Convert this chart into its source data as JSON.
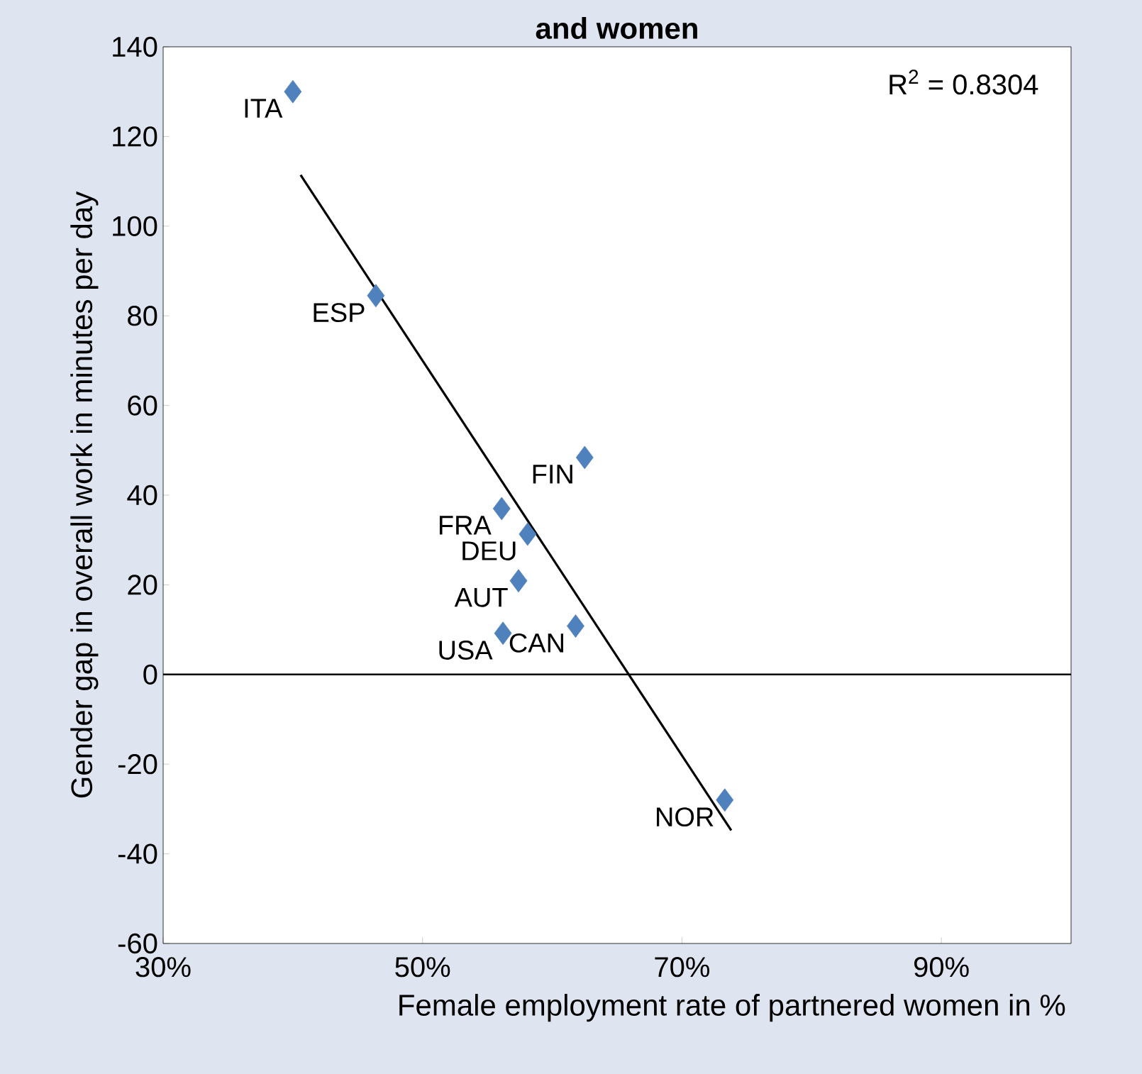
{
  "chart_data": {
    "type": "scatter",
    "title": "and women",
    "xlabel": "Female employment rate of partnered women in %",
    "ylabel": "Gender gap in overall work in minutes per day",
    "xlim": [
      30,
      100
    ],
    "ylim": [
      -60,
      140
    ],
    "xticks": [
      {
        "value": 30,
        "label": "30%"
      },
      {
        "value": 50,
        "label": "50%"
      },
      {
        "value": 70,
        "label": "70%"
      },
      {
        "value": 90,
        "label": "90%"
      }
    ],
    "yticks": [
      -60,
      -40,
      -20,
      0,
      20,
      40,
      60,
      80,
      100,
      120,
      140
    ],
    "marker": "diamond",
    "grid": false,
    "series": [
      {
        "color": "#4f81bd",
        "x": [
          40,
          46.4,
          62.5,
          56.1,
          58.1,
          57.4,
          56.2,
          61.8,
          73.3
        ],
        "values": [
          130,
          84.5,
          48.4,
          37,
          31.3,
          20.9,
          9.2,
          10.8,
          -28
        ]
      },
      {
        "type": "line",
        "marker": "none",
        "color": "#000000",
        "x": [
          40.6,
          73.8
        ],
        "values": [
          111.4,
          -34.8
        ]
      }
    ],
    "ref_lines": [
      {
        "axis": "y",
        "value": 0,
        "color": "#000000"
      }
    ],
    "annotations": [
      "R$^{2}$ = 0.8304",
      {
        "text": "ITA",
        "x": 40,
        "y": 130
      },
      {
        "text": "ESP",
        "x": 46.4,
        "y": 84.5
      },
      {
        "text": "FIN",
        "x": 62.5,
        "y": 48.4
      },
      {
        "text": "FRA",
        "x": 56.1,
        "y": 37
      },
      {
        "text": "DEU",
        "x": 58.1,
        "y": 31.3
      },
      {
        "text": "AUT",
        "x": 57.4,
        "y": 20.9
      },
      {
        "text": "USA",
        "x": 56.2,
        "y": 9.2
      },
      {
        "text": "CAN",
        "x": 61.8,
        "y": 10.8
      },
      {
        "text": "NOR",
        "x": 73.3,
        "y": -28
      }
    ]
  }
}
